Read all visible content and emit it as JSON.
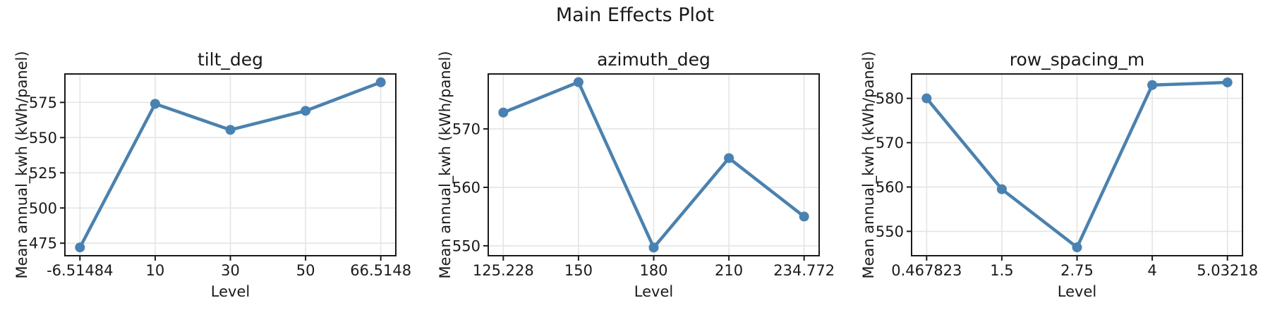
{
  "figure": {
    "title": "Main Effects Plot"
  },
  "colors": {
    "line": "#4682b4",
    "marker": "#4682b4",
    "grid": "#e4e4e4",
    "spine": "#1a1a1a",
    "text": "#1a1a1a",
    "background": "#ffffff"
  },
  "chart_data": [
    {
      "type": "line",
      "title": "tilt_deg",
      "xlabel": "Level",
      "ylabel": "Mean annual_kwh (kWh/panel)",
      "categories": [
        "-6.51484",
        "10",
        "30",
        "50",
        "66.5148"
      ],
      "values": [
        472,
        574,
        555.5,
        569,
        589.3
      ],
      "yticks": [
        475,
        500,
        525,
        550,
        575
      ],
      "ylim": [
        466.1,
        595.2
      ],
      "grid": true,
      "marker": "circle",
      "legend": "none"
    },
    {
      "type": "line",
      "title": "azimuth_deg",
      "xlabel": "Level",
      "ylabel": "Mean annual_kwh (kWh/panel)",
      "categories": [
        "125.228",
        "150",
        "180",
        "210",
        "234.772"
      ],
      "values": [
        572.8,
        578,
        549.7,
        565,
        555
      ],
      "yticks": [
        550,
        560,
        570
      ],
      "ylim": [
        548.3,
        579.4
      ],
      "grid": true,
      "marker": "circle",
      "legend": "none"
    },
    {
      "type": "line",
      "title": "row_spacing_m",
      "xlabel": "Level",
      "ylabel": "Mean annual_kwh (kWh/panel)",
      "categories": [
        "0.467823",
        "1.5",
        "2.75",
        "4",
        "5.03218"
      ],
      "values": [
        580,
        559.5,
        546.4,
        583,
        583.6
      ],
      "yticks": [
        550,
        560,
        570,
        580
      ],
      "ylim": [
        544.5,
        585.5
      ],
      "grid": true,
      "marker": "circle",
      "legend": "none"
    }
  ]
}
